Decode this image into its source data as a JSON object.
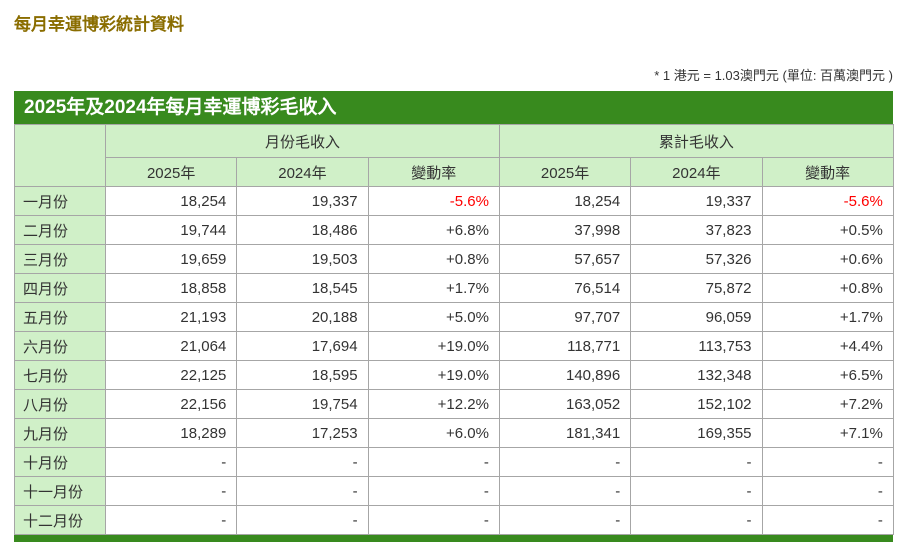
{
  "page": {
    "title": "每月幸運博彩統計資料",
    "note": "* 1 港元 = 1.03澳門元 (單位: 百萬澳門元 )"
  },
  "table": {
    "caption": "2025年及2024年每月幸運博彩毛收入",
    "group_headers": {
      "monthly": "月份毛收入",
      "cumulative": "累計毛收入"
    },
    "column_headers": {
      "y2025": "2025年",
      "y2024": "2024年",
      "change": "變動率"
    },
    "rows": [
      {
        "month": "一月份",
        "monthly": [
          "18,254",
          "19,337",
          "-5.6%"
        ],
        "cumulative": [
          "18,254",
          "19,337",
          "-5.6%"
        ]
      },
      {
        "month": "二月份",
        "monthly": [
          "19,744",
          "18,486",
          "+6.8%"
        ],
        "cumulative": [
          "37,998",
          "37,823",
          "+0.5%"
        ]
      },
      {
        "month": "三月份",
        "monthly": [
          "19,659",
          "19,503",
          "+0.8%"
        ],
        "cumulative": [
          "57,657",
          "57,326",
          "+0.6%"
        ]
      },
      {
        "month": "四月份",
        "monthly": [
          "18,858",
          "18,545",
          "+1.7%"
        ],
        "cumulative": [
          "76,514",
          "75,872",
          "+0.8%"
        ]
      },
      {
        "month": "五月份",
        "monthly": [
          "21,193",
          "20,188",
          "+5.0%"
        ],
        "cumulative": [
          "97,707",
          "96,059",
          "+1.7%"
        ]
      },
      {
        "month": "六月份",
        "monthly": [
          "21,064",
          "17,694",
          "+19.0%"
        ],
        "cumulative": [
          "118,771",
          "113,753",
          "+4.4%"
        ]
      },
      {
        "month": "七月份",
        "monthly": [
          "22,125",
          "18,595",
          "+19.0%"
        ],
        "cumulative": [
          "140,896",
          "132,348",
          "+6.5%"
        ]
      },
      {
        "month": "八月份",
        "monthly": [
          "22,156",
          "19,754",
          "+12.2%"
        ],
        "cumulative": [
          "163,052",
          "152,102",
          "+7.2%"
        ]
      },
      {
        "month": "九月份",
        "monthly": [
          "18,289",
          "17,253",
          "+6.0%"
        ],
        "cumulative": [
          "181,341",
          "169,355",
          "+7.1%"
        ]
      },
      {
        "month": "十月份",
        "monthly": [
          "-",
          "-",
          "-"
        ],
        "cumulative": [
          "-",
          "-",
          "-"
        ]
      },
      {
        "month": "十一月份",
        "monthly": [
          "-",
          "-",
          "-"
        ],
        "cumulative": [
          "-",
          "-",
          "-"
        ]
      },
      {
        "month": "十二月份",
        "monthly": [
          "-",
          "-",
          "-"
        ],
        "cumulative": [
          "-",
          "-",
          "-"
        ]
      }
    ]
  },
  "colors": {
    "header_green": "#388a1e",
    "cell_green": "#d0f0c8",
    "title_gold": "#8a6d00",
    "negative_red": "#ff0000",
    "border_gray": "#a6a6a6",
    "text": "#333333"
  }
}
